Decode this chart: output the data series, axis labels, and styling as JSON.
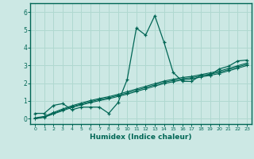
{
  "xlabel": "Humidex (Indice chaleur)",
  "background_color": "#cce8e4",
  "grid_color": "#b0d8d0",
  "line_color": "#006655",
  "spine_color": "#006655",
  "xlim": [
    -0.5,
    23.5
  ],
  "ylim": [
    -0.3,
    6.5
  ],
  "xticks": [
    0,
    1,
    2,
    3,
    4,
    5,
    6,
    7,
    8,
    9,
    10,
    11,
    12,
    13,
    14,
    15,
    16,
    17,
    18,
    19,
    20,
    21,
    22,
    23
  ],
  "yticks": [
    0,
    1,
    2,
    3,
    4,
    5,
    6
  ],
  "series": [
    [
      0.3,
      0.3,
      0.75,
      0.85,
      0.5,
      0.65,
      0.65,
      0.65,
      0.3,
      0.9,
      2.2,
      5.1,
      4.7,
      5.8,
      4.3,
      2.6,
      2.1,
      2.1,
      2.45,
      2.45,
      2.8,
      2.95,
      3.25,
      3.3
    ],
    [
      0.05,
      0.13,
      0.35,
      0.55,
      0.73,
      0.88,
      1.02,
      1.14,
      1.24,
      1.37,
      1.52,
      1.67,
      1.82,
      1.97,
      2.12,
      2.22,
      2.32,
      2.38,
      2.48,
      2.58,
      2.68,
      2.83,
      2.98,
      3.13
    ],
    [
      0.0,
      0.1,
      0.3,
      0.5,
      0.68,
      0.82,
      0.96,
      1.08,
      1.18,
      1.31,
      1.45,
      1.6,
      1.75,
      1.9,
      2.05,
      2.15,
      2.25,
      2.31,
      2.41,
      2.51,
      2.61,
      2.76,
      2.91,
      3.06
    ],
    [
      0.0,
      0.08,
      0.27,
      0.45,
      0.63,
      0.77,
      0.9,
      1.02,
      1.12,
      1.25,
      1.38,
      1.53,
      1.68,
      1.83,
      1.98,
      2.08,
      2.18,
      2.24,
      2.34,
      2.44,
      2.54,
      2.69,
      2.84,
      2.99
    ]
  ]
}
